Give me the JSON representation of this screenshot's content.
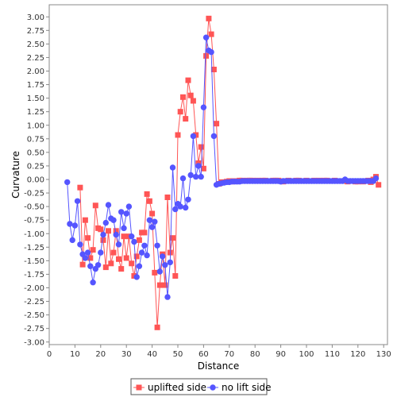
{
  "chart_data": {
    "type": "line",
    "xlabel": "Distance",
    "ylabel": "Curvature",
    "xlim": [
      0,
      131
    ],
    "ylim": [
      -3.0,
      3.1
    ],
    "xticks": [
      0,
      10,
      20,
      30,
      40,
      50,
      60,
      70,
      80,
      90,
      100,
      110,
      120,
      130
    ],
    "yticks": [
      3.0,
      2.75,
      2.5,
      2.25,
      2.0,
      1.75,
      1.5,
      1.25,
      1.0,
      0.75,
      0.5,
      0.25,
      0.0,
      -0.25,
      -0.5,
      -0.75,
      -1.0,
      -1.25,
      -1.5,
      -1.75,
      -2.0,
      -2.25,
      -2.5,
      -2.75,
      -3.0
    ],
    "ytick_labels": [
      "3.00",
      "2.75",
      "2.50",
      "2.25",
      "2.00",
      "1.75",
      "1.50",
      "1.25",
      "1.00",
      "0.75",
      "0.50",
      "0.25",
      "0.00",
      "-0.25",
      "-0.50",
      "-0.75",
      "-1.00",
      "-1.25",
      "-1.50",
      "-1.75",
      "-2.00",
      "-2.25",
      "-2.50",
      "-2.75",
      "-3.00"
    ],
    "grid": false,
    "legend_position": "bottom",
    "series": [
      {
        "name": "uplifted side",
        "color": "#ff5555",
        "marker": "square",
        "x": [
          12,
          13,
          14,
          15,
          16,
          17,
          18,
          19,
          20,
          21,
          22,
          23,
          24,
          25,
          26,
          27,
          28,
          29,
          30,
          31,
          32,
          33,
          34,
          35,
          36,
          37,
          38,
          39,
          40,
          41,
          42,
          43,
          44,
          45,
          46,
          47,
          48,
          49,
          50,
          51,
          52,
          53,
          54,
          55,
          56,
          57,
          58,
          59,
          60,
          61,
          62,
          63,
          64,
          65,
          66,
          67,
          68,
          69,
          70,
          71,
          72,
          73,
          74,
          75,
          76,
          77,
          78,
          79,
          80,
          81,
          82,
          83,
          84,
          85,
          86,
          87,
          88,
          89,
          90,
          91,
          92,
          93,
          94,
          95,
          96,
          97,
          98,
          99,
          100,
          101,
          102,
          103,
          104,
          105,
          106,
          107,
          108,
          109,
          110,
          111,
          112,
          113,
          114,
          115,
          116,
          117,
          118,
          119,
          120,
          121,
          122,
          123,
          124,
          125,
          126,
          127,
          128
        ],
        "values": [
          -0.15,
          -1.57,
          -0.75,
          -1.08,
          -1.45,
          -1.3,
          -0.48,
          -0.9,
          -0.92,
          -1.12,
          -1.62,
          -0.95,
          -1.55,
          -1.35,
          -0.95,
          -1.47,
          -1.65,
          -1.05,
          -1.45,
          -1.05,
          -1.55,
          -1.78,
          -1.42,
          -1.12,
          -0.98,
          -0.98,
          -0.27,
          -0.4,
          -0.63,
          -1.72,
          -2.73,
          -1.95,
          -1.38,
          -1.95,
          -0.33,
          -1.35,
          -1.08,
          -1.78,
          0.82,
          1.25,
          1.52,
          1.12,
          1.83,
          1.55,
          1.45,
          0.82,
          0.3,
          0.6,
          0.2,
          2.28,
          2.97,
          2.68,
          2.03,
          1.03,
          -0.08,
          -0.05,
          -0.05,
          -0.04,
          -0.03,
          -0.04,
          -0.03,
          -0.03,
          -0.02,
          -0.02,
          -0.03,
          -0.02,
          -0.02,
          -0.02,
          -0.03,
          -0.02,
          -0.03,
          -0.02,
          -0.02,
          -0.03,
          -0.03,
          -0.02,
          -0.02,
          -0.02,
          -0.03,
          -0.04,
          -0.03,
          -0.02,
          -0.03,
          -0.03,
          -0.02,
          -0.02,
          -0.03,
          -0.03,
          -0.02,
          -0.03,
          -0.03,
          -0.02,
          -0.03,
          -0.02,
          -0.03,
          -0.02,
          -0.02,
          -0.03,
          -0.03,
          -0.02,
          -0.03,
          -0.03,
          -0.03,
          -0.03,
          -0.04,
          -0.03,
          -0.03,
          -0.04,
          -0.04,
          -0.03,
          -0.04,
          -0.03,
          -0.02,
          -0.05,
          0.0,
          0.05,
          -0.1
        ]
      },
      {
        "name": "no lift side",
        "color": "#5555ff",
        "marker": "circle",
        "x": [
          7,
          8,
          9,
          10,
          11,
          12,
          13,
          14,
          15,
          16,
          17,
          18,
          19,
          20,
          21,
          22,
          23,
          24,
          25,
          26,
          27,
          28,
          29,
          30,
          31,
          32,
          33,
          34,
          35,
          36,
          37,
          38,
          39,
          40,
          41,
          42,
          43,
          44,
          45,
          46,
          47,
          48,
          49,
          50,
          51,
          52,
          53,
          54,
          55,
          56,
          57,
          58,
          59,
          60,
          61,
          62,
          63,
          64,
          65,
          66,
          67,
          68,
          69,
          70,
          71,
          72,
          73,
          74,
          75,
          76,
          77,
          78,
          79,
          80,
          81,
          82,
          83,
          84,
          85,
          86,
          87,
          88,
          89,
          90,
          91,
          92,
          93,
          94,
          95,
          96,
          97,
          98,
          99,
          100,
          101,
          102,
          103,
          104,
          105,
          106,
          107,
          108,
          109,
          110,
          111,
          112,
          113,
          114,
          115,
          116,
          117,
          118,
          119,
          120,
          121,
          122,
          123,
          124,
          125,
          126,
          127
        ],
        "values": [
          -0.05,
          -0.82,
          -1.12,
          -0.85,
          -0.4,
          -1.2,
          -1.38,
          -1.45,
          -1.35,
          -1.6,
          -1.9,
          -1.65,
          -1.58,
          -1.35,
          -1.02,
          -0.8,
          -0.47,
          -0.72,
          -0.75,
          -1.02,
          -1.2,
          -0.6,
          -0.9,
          -0.63,
          -0.5,
          -1.05,
          -1.15,
          -1.8,
          -1.6,
          -1.35,
          -1.22,
          -1.4,
          -0.75,
          -0.88,
          -0.78,
          -1.22,
          -1.7,
          -1.42,
          -1.58,
          -2.17,
          -1.53,
          0.22,
          -0.55,
          -0.45,
          -0.5,
          0.02,
          -0.52,
          -0.37,
          0.08,
          0.8,
          0.05,
          0.25,
          0.05,
          1.33,
          2.62,
          2.38,
          2.35,
          0.8,
          -0.1,
          -0.08,
          -0.07,
          -0.06,
          -0.05,
          -0.05,
          -0.04,
          -0.04,
          -0.04,
          -0.04,
          -0.03,
          -0.03,
          -0.03,
          -0.03,
          -0.03,
          -0.03,
          -0.03,
          -0.03,
          -0.03,
          -0.03,
          -0.03,
          -0.03,
          -0.03,
          -0.03,
          -0.03,
          -0.04,
          -0.03,
          -0.03,
          -0.03,
          -0.03,
          -0.03,
          -0.03,
          -0.03,
          -0.03,
          -0.03,
          -0.03,
          -0.03,
          -0.03,
          -0.03,
          -0.03,
          -0.03,
          -0.03,
          -0.03,
          -0.03,
          -0.03,
          -0.03,
          -0.03,
          -0.03,
          -0.03,
          -0.03,
          0.0,
          -0.03,
          -0.03,
          -0.03,
          -0.03,
          -0.03,
          -0.03,
          -0.03,
          -0.03,
          -0.03,
          -0.03,
          -0.03,
          0.02
        ]
      }
    ]
  }
}
